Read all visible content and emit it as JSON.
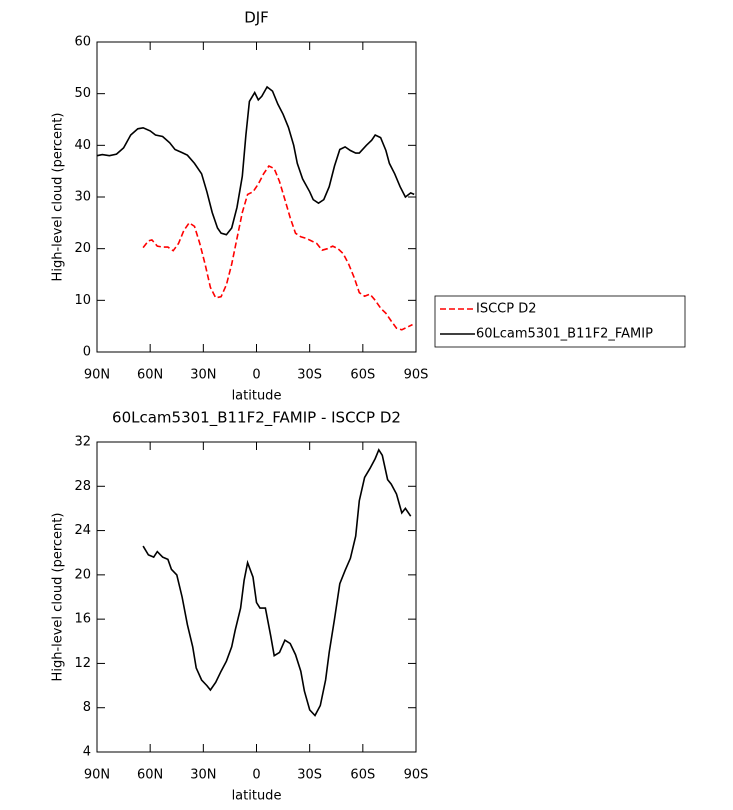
{
  "chart_data": [
    {
      "type": "line",
      "title": "DJF",
      "xlabel": "latitude",
      "ylabel": "High-level cloud (percent)",
      "xlim": [
        90,
        -90
      ],
      "xticks": [
        {
          "value": 90,
          "label": "90N"
        },
        {
          "value": 60,
          "label": "60N"
        },
        {
          "value": 30,
          "label": "30N"
        },
        0,
        {
          "value": -30,
          "label": "30S"
        },
        {
          "value": -60,
          "label": "60S"
        },
        {
          "value": -90,
          "label": "90S"
        }
      ],
      "ylim": [
        0,
        60
      ],
      "yticks": [
        0,
        10,
        20,
        30,
        40,
        50,
        60
      ],
      "legend": "outside-right",
      "series": [
        {
          "name": "ISCCP D2",
          "color": "#ff0000",
          "dashed": true,
          "x": [
            64,
            61,
            59,
            56,
            53,
            50,
            47,
            44,
            41,
            38,
            35,
            32,
            29,
            26,
            23,
            20,
            17,
            14,
            11,
            8,
            5,
            2,
            -1,
            -4,
            -7,
            -10,
            -13,
            -16,
            -19,
            -22,
            -25,
            -28,
            -31,
            -34,
            -37,
            -40,
            -43,
            -46,
            -49,
            -52,
            -55,
            -58,
            -61,
            -64,
            -67,
            -70,
            -73,
            -76,
            -79,
            -82,
            -85,
            -88
          ],
          "values": [
            20.2,
            21.5,
            21.7,
            20.5,
            20.3,
            20.3,
            19.6,
            21,
            23.5,
            25,
            24.3,
            21,
            17,
            12.5,
            10.5,
            10.7,
            13,
            17,
            22,
            27,
            30.5,
            31,
            32.5,
            34.5,
            36,
            35.5,
            33,
            29.5,
            26,
            23,
            22.3,
            22,
            21.5,
            21,
            19.7,
            20,
            20.5,
            20,
            19,
            17,
            14.5,
            11.5,
            10.8,
            11.2,
            10,
            8.5,
            7.5,
            6,
            4.6,
            4.3,
            4.8,
            5.3
          ]
        },
        {
          "name": "60Lcam5301_B11F2_FAMIP",
          "color": "#000000",
          "dashed": false,
          "x": [
            90,
            87,
            83,
            79,
            75,
            71,
            67,
            64,
            60,
            57,
            53,
            49,
            46,
            42,
            39,
            35,
            31,
            28,
            25,
            22,
            20,
            17,
            14,
            11,
            8,
            6,
            4,
            1,
            -1,
            -3,
            -6,
            -9,
            -12,
            -15,
            -18,
            -21,
            -23,
            -26,
            -30,
            -32,
            -35,
            -38,
            -41,
            -44,
            -47,
            -50,
            -53,
            -56,
            -58,
            -62,
            -65,
            -67,
            -70,
            -73,
            -75,
            -78,
            -81,
            -84,
            -87,
            -89
          ],
          "values": [
            38,
            38.2,
            38,
            38.3,
            39.5,
            42,
            43.2,
            43.4,
            42.8,
            42,
            41.7,
            40.5,
            39.2,
            38.6,
            38.1,
            36.5,
            34.5,
            31,
            27,
            24,
            23,
            22.7,
            24,
            28,
            34,
            42,
            48.5,
            50.2,
            48.8,
            49.5,
            51.3,
            50.5,
            48,
            46,
            43.5,
            40,
            36.5,
            33.5,
            31,
            29.5,
            28.8,
            29.5,
            32,
            36,
            39.2,
            39.7,
            39,
            38.5,
            38.5,
            40,
            41,
            42,
            41.5,
            39,
            36.5,
            34.5,
            32,
            30,
            30.8,
            30.5
          ]
        }
      ]
    },
    {
      "type": "line",
      "title": "60Lcam5301_B11F2_FAMIP - ISCCP D2",
      "xlabel": "latitude",
      "ylabel": "High-level cloud (percent)",
      "xlim": [
        90,
        -90
      ],
      "xticks": [
        {
          "value": 90,
          "label": "90N"
        },
        {
          "value": 60,
          "label": "60N"
        },
        {
          "value": 30,
          "label": "30N"
        },
        0,
        {
          "value": -30,
          "label": "30S"
        },
        {
          "value": -60,
          "label": "60S"
        },
        {
          "value": -90,
          "label": "90S"
        }
      ],
      "ylim": [
        4,
        32
      ],
      "yticks": [
        4,
        8,
        12,
        16,
        20,
        24,
        28,
        32
      ],
      "color": "#000000",
      "x": [
        64,
        61,
        58,
        56,
        53,
        50,
        48,
        45,
        42,
        39,
        36,
        34,
        31,
        28,
        26,
        23,
        20,
        17,
        14,
        12,
        9,
        7,
        5,
        2,
        0,
        -2,
        -5,
        -8,
        -10,
        -13,
        -16,
        -19,
        -22,
        -25,
        -27,
        -30,
        -33,
        -36,
        -39,
        -41,
        -44,
        -47,
        -50,
        -53,
        -56,
        -58,
        -61,
        -64,
        -67,
        -69,
        -71,
        -74,
        -76,
        -79,
        -82,
        -84,
        -87
      ],
      "values": [
        22.6,
        21.8,
        21.6,
        22.1,
        21.6,
        21.4,
        20.5,
        20,
        18,
        15.5,
        13.5,
        11.6,
        10.5,
        10,
        9.6,
        10.3,
        11.3,
        12.2,
        13.5,
        15,
        17,
        19.5,
        21.1,
        19.8,
        17.5,
        17,
        17,
        14.5,
        12.7,
        13,
        14.1,
        13.8,
        12.8,
        11.3,
        9.5,
        7.8,
        7.3,
        8.2,
        10.5,
        13,
        16,
        19.2,
        20.4,
        21.5,
        23.5,
        26.7,
        28.8,
        29.6,
        30.5,
        31.3,
        30.8,
        28.6,
        28.2,
        27.3,
        25.6,
        26,
        25.3
      ]
    }
  ]
}
